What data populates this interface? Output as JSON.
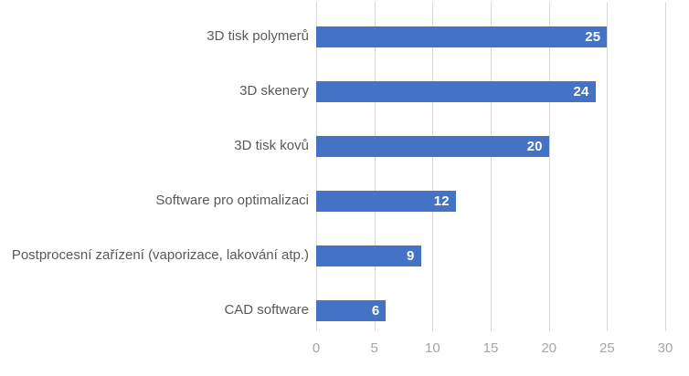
{
  "chart_data": {
    "type": "bar",
    "orientation": "horizontal",
    "title": "",
    "xlabel": "",
    "ylabel": "",
    "categories": [
      "3D tisk polymerů",
      "3D skenery",
      "3D tisk kovů",
      "Software pro optimalizaci",
      "Postprocesní zařízení (vaporizace, lakování atp.)",
      "CAD software"
    ],
    "values": [
      25,
      24,
      20,
      12,
      9,
      6
    ],
    "xlim": [
      0,
      30
    ],
    "xticks": [
      "0",
      "5",
      "10",
      "15",
      "20",
      "25",
      "30"
    ],
    "grid": true,
    "legend": "none",
    "data_labels_position": "inside-end",
    "colors": {
      "bar": "#4472c4",
      "data_label": "#ffffff",
      "category_label": "#595959",
      "tick_label": "#a6a6a6",
      "gridline": "#d9d9d9",
      "background": "#ffffff"
    }
  }
}
